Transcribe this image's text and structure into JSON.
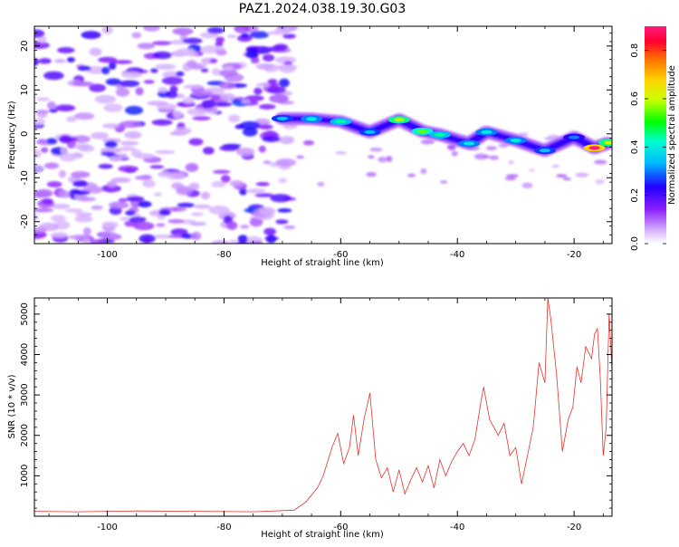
{
  "title": "PAZ1.2024.038.19.30.G03",
  "chart_data": [
    {
      "type": "heatmap",
      "xlabel": "Height of straight line (km)",
      "ylabel": "Frequency (Hz)",
      "xlim": [
        -112.5,
        -13.5
      ],
      "ylim": [
        -25,
        24.5
      ],
      "xticks": [
        -100,
        -80,
        -60,
        -40,
        -20
      ],
      "yticks": [
        -20,
        -10,
        0,
        10,
        20
      ],
      "colorbar": {
        "label": "Normalized spectral amplitude",
        "range": [
          0,
          0.9
        ],
        "ticks": [
          0.0,
          0.2,
          0.4,
          0.6,
          0.8
        ]
      },
      "ridge": [
        {
          "x": -70,
          "f": 3.5,
          "a": 0.35
        },
        {
          "x": -65,
          "f": 3.4,
          "a": 0.4
        },
        {
          "x": -60,
          "f": 2.8,
          "a": 0.45
        },
        {
          "x": -55,
          "f": 0.4,
          "a": 0.35
        },
        {
          "x": -50,
          "f": 3.2,
          "a": 0.6
        },
        {
          "x": -46,
          "f": 0.6,
          "a": 0.55
        },
        {
          "x": -43,
          "f": -0.2,
          "a": 0.45
        },
        {
          "x": -38,
          "f": -2.2,
          "a": 0.4
        },
        {
          "x": -35,
          "f": 0.4,
          "a": 0.4
        },
        {
          "x": -30,
          "f": -1.5,
          "a": 0.4
        },
        {
          "x": -25,
          "f": -3.8,
          "a": 0.35
        },
        {
          "x": -20,
          "f": -0.8,
          "a": 0.3
        },
        {
          "x": -16.5,
          "f": -3.2,
          "a": 0.9
        },
        {
          "x": -14,
          "f": -2.0,
          "a": 0.6
        }
      ]
    },
    {
      "type": "line",
      "xlabel": "Height of straight line (km)",
      "ylabel": "SNR (10 * v/v)",
      "xlim": [
        -112.5,
        -13.5
      ],
      "ylim": [
        0,
        5400
      ],
      "xticks": [
        -100,
        -80,
        -60,
        -40,
        -20
      ],
      "yticks": [
        1000,
        2000,
        3000,
        4000,
        5000
      ],
      "color": "#e8312a",
      "series": [
        {
          "values": [
            [
              -112.5,
              120
            ],
            [
              -105,
              110
            ],
            [
              -95,
              130
            ],
            [
              -85,
              120
            ],
            [
              -75,
              110
            ],
            [
              -68,
              150
            ],
            [
              -66,
              350
            ],
            [
              -64,
              700
            ],
            [
              -63,
              1000
            ],
            [
              -61.5,
              1700
            ],
            [
              -60.5,
              2050
            ],
            [
              -59.5,
              1300
            ],
            [
              -58.5,
              1700
            ],
            [
              -57.8,
              2500
            ],
            [
              -57,
              1500
            ],
            [
              -56,
              2400
            ],
            [
              -55,
              3050
            ],
            [
              -54,
              1400
            ],
            [
              -53,
              950
            ],
            [
              -52,
              1200
            ],
            [
              -51,
              600
            ],
            [
              -50,
              1150
            ],
            [
              -49,
              550
            ],
            [
              -48,
              900
            ],
            [
              -47,
              1200
            ],
            [
              -46,
              850
            ],
            [
              -45,
              1250
            ],
            [
              -44,
              700
            ],
            [
              -43,
              1400
            ],
            [
              -42,
              1000
            ],
            [
              -41,
              1350
            ],
            [
              -40,
              1600
            ],
            [
              -39,
              1800
            ],
            [
              -38,
              1500
            ],
            [
              -37,
              1900
            ],
            [
              -36,
              2800
            ],
            [
              -35.5,
              3200
            ],
            [
              -34.5,
              2400
            ],
            [
              -33,
              2000
            ],
            [
              -32,
              2300
            ],
            [
              -31,
              1500
            ],
            [
              -30,
              1700
            ],
            [
              -29,
              800
            ],
            [
              -28,
              1500
            ],
            [
              -27,
              2200
            ],
            [
              -26,
              3800
            ],
            [
              -25,
              3300
            ],
            [
              -24.5,
              5400
            ],
            [
              -24,
              4900
            ],
            [
              -23,
              3500
            ],
            [
              -22,
              1600
            ],
            [
              -21,
              2400
            ],
            [
              -20.2,
              2700
            ],
            [
              -19.5,
              3700
            ],
            [
              -18.8,
              3300
            ],
            [
              -18,
              4200
            ],
            [
              -17,
              3900
            ],
            [
              -16.5,
              4500
            ],
            [
              -16,
              4650
            ],
            [
              -15.5,
              3400
            ],
            [
              -15,
              1500
            ],
            [
              -14.5,
              2200
            ],
            [
              -14,
              5000
            ],
            [
              -13.5,
              3600
            ]
          ]
        }
      ]
    }
  ]
}
